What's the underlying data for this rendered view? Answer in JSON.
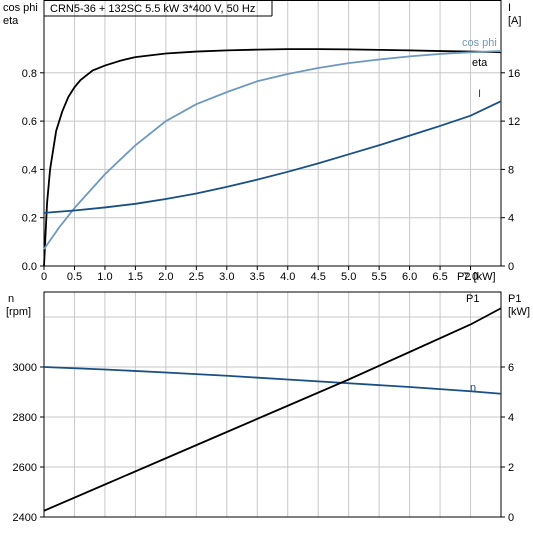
{
  "chart_data": [
    {
      "type": "line",
      "title": "CRN5-36 + 132SC   5.5 kW   3*400 V, 50 Hz",
      "xlabel": "P2 [kW]",
      "xlim": [
        0,
        7.5
      ],
      "xticks": [
        0,
        0.5,
        1.0,
        1.5,
        2.0,
        2.5,
        3.0,
        3.5,
        4.0,
        4.5,
        5.0,
        5.5,
        6.0,
        6.5,
        7.0
      ],
      "xtick_labels": [
        "0",
        "0.5",
        "1.0",
        "1.5",
        "2.0",
        "2.5",
        "3.0",
        "3.5",
        "4.0",
        "4.5",
        "5.0",
        "5.5",
        "6.0",
        "6.5",
        "7.0"
      ],
      "y_left_label_line1": "cos phi",
      "y_left_label_line2": "eta",
      "ylim_left": [
        0,
        1.0
      ],
      "yticks_left": [
        "0.0",
        "0.2",
        "0.4",
        "0.6",
        "0.8"
      ],
      "y_right_label_line1": "I",
      "y_right_label_line2": "[A]",
      "ylim_right": [
        0,
        20
      ],
      "yticks_right": [
        "0",
        "4",
        "8",
        "12",
        "16"
      ],
      "grid": true,
      "series": [
        {
          "name": "eta",
          "axis": "left",
          "color": "#000000",
          "x": [
            0,
            0.05,
            0.1,
            0.2,
            0.3,
            0.4,
            0.5,
            0.6,
            0.7,
            0.8,
            1.0,
            1.25,
            1.5,
            2.0,
            2.5,
            3.0,
            3.5,
            4.0,
            4.5,
            5.0,
            5.5,
            6.0,
            6.5,
            7.0,
            7.5
          ],
          "y": [
            0,
            0.26,
            0.4,
            0.56,
            0.64,
            0.7,
            0.74,
            0.77,
            0.79,
            0.81,
            0.83,
            0.85,
            0.865,
            0.88,
            0.888,
            0.893,
            0.896,
            0.898,
            0.898,
            0.897,
            0.895,
            0.893,
            0.89,
            0.888,
            0.885
          ]
        },
        {
          "name": "cos phi",
          "axis": "left",
          "color": "#6f98bf",
          "x": [
            0,
            0.25,
            0.5,
            0.75,
            1.0,
            1.5,
            2.0,
            2.5,
            3.0,
            3.5,
            4.0,
            4.5,
            5.0,
            5.5,
            6.0,
            6.5,
            7.0,
            7.5
          ],
          "y": [
            0.07,
            0.16,
            0.24,
            0.31,
            0.38,
            0.5,
            0.6,
            0.67,
            0.72,
            0.765,
            0.795,
            0.82,
            0.84,
            0.855,
            0.868,
            0.878,
            0.885,
            0.89
          ]
        },
        {
          "name": "I",
          "axis": "right",
          "color": "#1a4f85",
          "x": [
            0,
            0.5,
            1.0,
            1.5,
            2.0,
            2.5,
            3.0,
            3.5,
            4.0,
            4.5,
            5.0,
            5.5,
            6.0,
            6.5,
            7.0,
            7.5
          ],
          "y": [
            4.4,
            4.6,
            4.85,
            5.15,
            5.55,
            6.0,
            6.55,
            7.15,
            7.8,
            8.5,
            9.25,
            10.0,
            10.8,
            11.6,
            12.45,
            13.65
          ]
        }
      ]
    },
    {
      "type": "line",
      "xlim": [
        0,
        7.5
      ],
      "y_left_label_line1": "n",
      "y_left_label_line2": "[rpm]",
      "ylim_left": [
        2400,
        3200
      ],
      "yticks_left": [
        "2400",
        "2600",
        "2800",
        "3000"
      ],
      "y_right_label_line1": "P1",
      "y_right_label_line2": "[kW]",
      "ylim_right": [
        0,
        8
      ],
      "yticks_right": [
        "0",
        "2",
        "4",
        "6"
      ],
      "grid": true,
      "series": [
        {
          "name": "n",
          "axis": "left",
          "color": "#1a4f85",
          "x": [
            0,
            1.0,
            2.0,
            3.0,
            4.0,
            5.0,
            6.0,
            7.0,
            7.5
          ],
          "y": [
            3000,
            2990,
            2978,
            2965,
            2950,
            2935,
            2920,
            2903,
            2893
          ]
        },
        {
          "name": "P1",
          "axis": "right",
          "color": "#000000",
          "x": [
            0,
            1.0,
            2.0,
            3.0,
            4.0,
            5.0,
            6.0,
            7.0,
            7.5
          ],
          "y": [
            0.25,
            1.3,
            2.35,
            3.4,
            4.45,
            5.5,
            6.6,
            7.7,
            8.35
          ]
        }
      ]
    }
  ]
}
